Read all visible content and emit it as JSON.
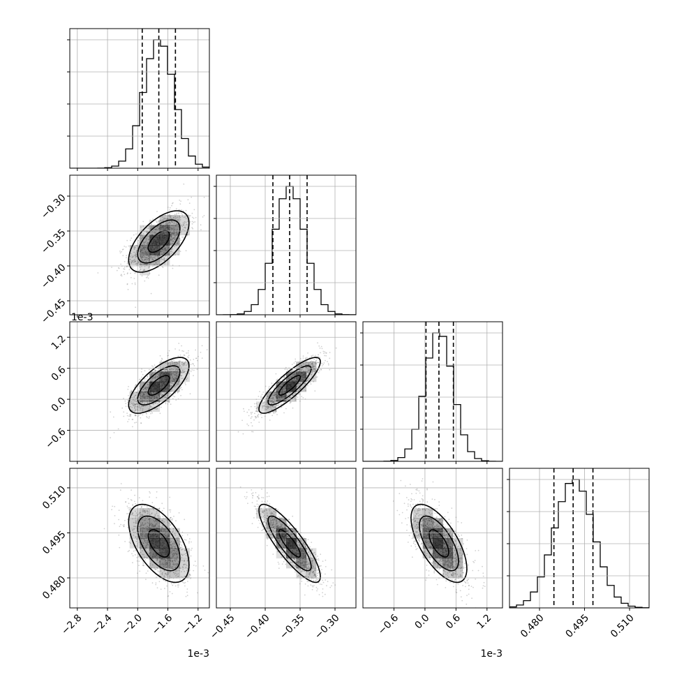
{
  "chart_data": {
    "type": "corner",
    "grid": true,
    "parameters": [
      {
        "range": [
          -2.9,
          -1.05
        ],
        "ticks": [
          -2.8,
          -2.4,
          -2.0,
          -1.6,
          -1.2
        ],
        "tick_labels": [
          "−2.8",
          "−2.4",
          "−2.0",
          "−1.6",
          "−1.2"
        ],
        "offset": "1e-3",
        "mean": -1.72,
        "sd": 0.2,
        "quantiles": [
          -1.94,
          -1.72,
          -1.5
        ]
      },
      {
        "range": [
          -0.47,
          -0.27
        ],
        "ticks": [
          -0.45,
          -0.4,
          -0.35,
          -0.3
        ],
        "tick_labels": [
          "−0.45",
          "−0.40",
          "−0.35",
          "−0.30"
        ],
        "offset": "",
        "mean": -0.365,
        "sd": 0.022,
        "quantiles": [
          -0.389,
          -0.365,
          -0.34
        ]
      },
      {
        "range": [
          -1.2,
          1.5
        ],
        "ticks": [
          -0.6,
          0.0,
          0.6,
          1.2
        ],
        "tick_labels": [
          "−0.6",
          "0.0",
          "0.6",
          "1.2"
        ],
        "offset": "1e-3",
        "mean": 0.27,
        "sd": 0.27,
        "quantiles": [
          0.02,
          0.27,
          0.55
        ]
      },
      {
        "range": [
          0.47,
          0.5165
        ],
        "ticks": [
          0.48,
          0.495,
          0.51
        ],
        "tick_labels": [
          "0.480",
          "0.495",
          "0.510"
        ],
        "offset": "",
        "mean": 0.4915,
        "sd": 0.0065,
        "quantiles": [
          0.4848,
          0.4912,
          0.4978
        ]
      }
    ],
    "correlations": [
      [
        1,
        0.6,
        0.7,
        -0.55
      ],
      [
        0.6,
        1,
        0.85,
        -0.85
      ],
      [
        0.7,
        0.85,
        1,
        -0.65
      ],
      [
        -0.55,
        -0.85,
        -0.65,
        1
      ]
    ]
  }
}
